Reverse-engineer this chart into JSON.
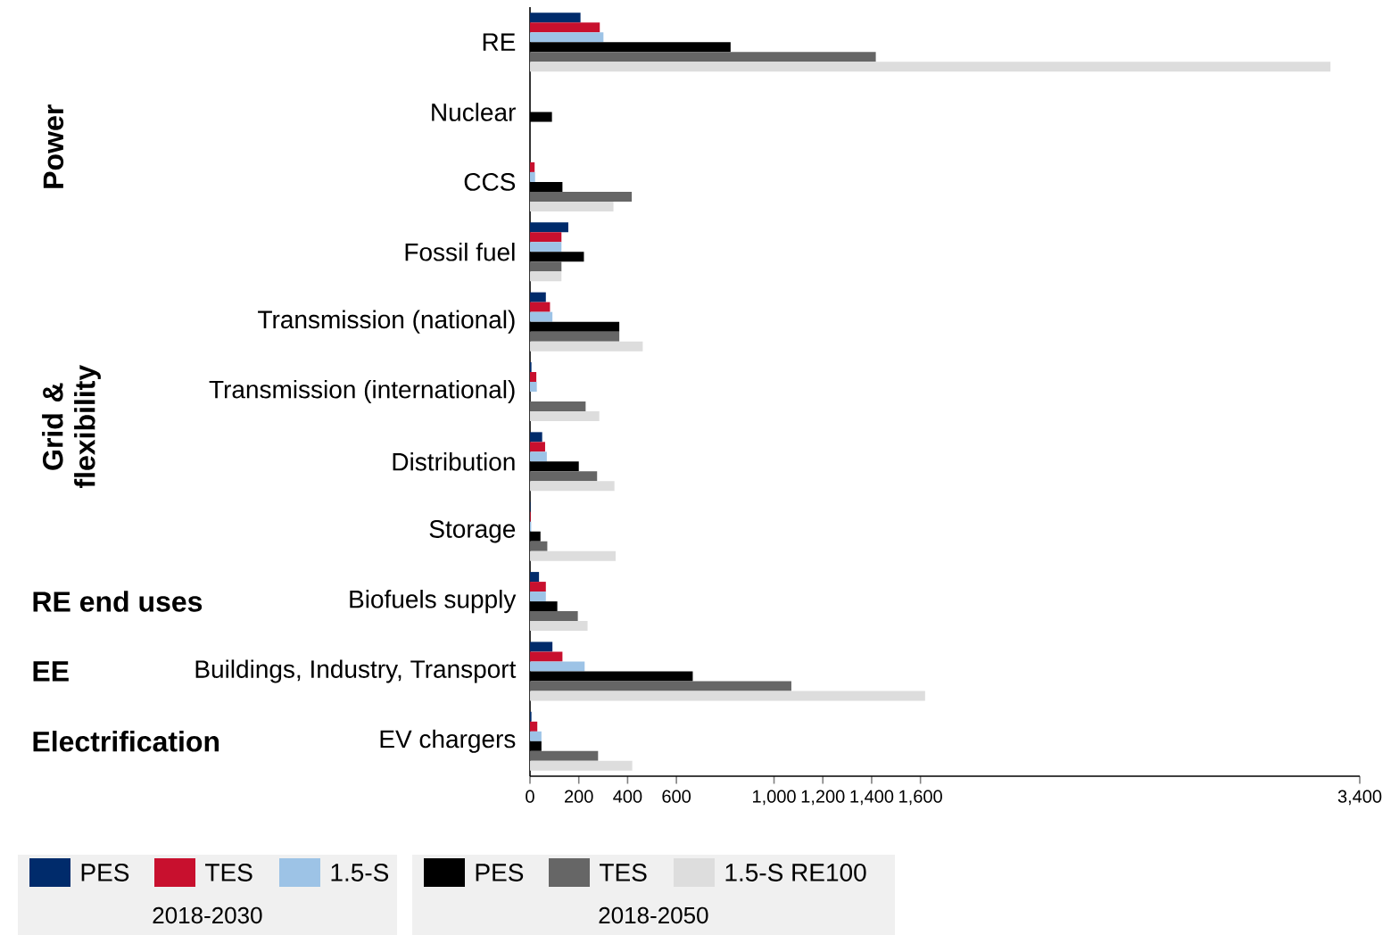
{
  "chart_data": {
    "type": "bar",
    "orientation": "horizontal",
    "categories": [
      "RE",
      "Nuclear",
      "CCS",
      "Fossil fuel",
      "Transmission (national)",
      "Transmission (international)",
      "Distribution",
      "Storage",
      "Biofuels supply",
      "Buildings, Industry, Transport",
      "EV chargers"
    ],
    "series": [
      {
        "name": "PES",
        "color": "#002b6b",
        "values": [
          207,
          null,
          null,
          157,
          65,
          6,
          50,
          2,
          37,
          92,
          6
        ]
      },
      {
        "name": "TES",
        "color": "#c8102e",
        "values": [
          286,
          null,
          19,
          129,
          82,
          26,
          62,
          3,
          65,
          133,
          30
        ]
      },
      {
        "name": "1.5-S",
        "color": "#9dc3e6",
        "values": [
          301,
          null,
          21,
          129,
          92,
          28,
          69,
          5,
          65,
          224,
          47
        ]
      },
      {
        "name": "PES",
        "color": "#000000",
        "values": [
          822,
          90,
          133,
          221,
          366,
          null,
          200,
          43,
          112,
          667,
          47
        ]
      },
      {
        "name": "TES",
        "color": "#666666",
        "values": [
          1417,
          null,
          417,
          129,
          366,
          228,
          275,
          71,
          196,
          1071,
          279
        ]
      },
      {
        "name": "1.5-S RE100",
        "color": "#dddddd",
        "values": [
          3280,
          null,
          342,
          129,
          462,
          284,
          346,
          351,
          236,
          1619,
          419
        ]
      }
    ],
    "xlim": [
      0,
      3400
    ],
    "xticks": [
      0,
      200,
      400,
      600,
      {
        "value": 1000,
        "label": "1,000"
      },
      {
        "value": 1200,
        "label": "1,200"
      },
      {
        "value": 1400,
        "label": "1,400"
      },
      {
        "value": 1600,
        "label": "1,600"
      },
      {
        "value": 3400,
        "label": "3,400"
      }
    ],
    "legend": "bottom",
    "annotations": [
      "Power",
      "Grid & flexibility",
      "RE end uses",
      "EE",
      "Electrification",
      "2018-2030",
      "2018-2050"
    ]
  }
}
